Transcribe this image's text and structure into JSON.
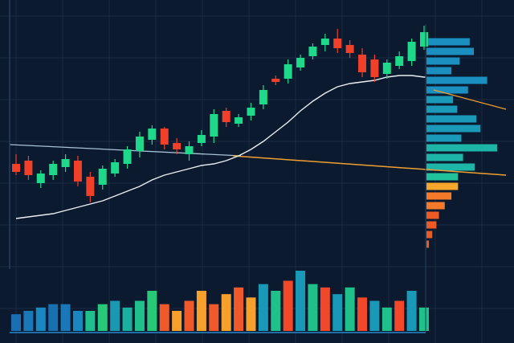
{
  "chart_data": {
    "type": "candlestick",
    "title": "",
    "xlabel": "",
    "ylabel": "",
    "grid": true,
    "price_range": [
      0,
      100
    ],
    "colors": {
      "background": "#0b1a2e",
      "grid": "#1a2c44",
      "bullish": "#1fd98a",
      "bearish": "#f0402a",
      "moving_average": "#e8eef4",
      "trend_line": "#f0a030",
      "axis": "#24405e"
    },
    "candles": [
      {
        "o": 58,
        "h": 64,
        "l": 51,
        "c": 53
      },
      {
        "o": 60,
        "h": 63,
        "l": 48,
        "c": 51
      },
      {
        "o": 46,
        "h": 54,
        "l": 43,
        "c": 52
      },
      {
        "o": 51,
        "h": 60,
        "l": 48,
        "c": 58
      },
      {
        "o": 56,
        "h": 64,
        "l": 53,
        "c": 61
      },
      {
        "o": 60,
        "h": 63,
        "l": 44,
        "c": 47
      },
      {
        "o": 50,
        "h": 53,
        "l": 34,
        "c": 38
      },
      {
        "o": 45,
        "h": 57,
        "l": 42,
        "c": 55
      },
      {
        "o": 52,
        "h": 61,
        "l": 50,
        "c": 59
      },
      {
        "o": 58,
        "h": 69,
        "l": 55,
        "c": 67
      },
      {
        "o": 66,
        "h": 78,
        "l": 62,
        "c": 75
      },
      {
        "o": 73,
        "h": 82,
        "l": 70,
        "c": 80
      },
      {
        "o": 80,
        "h": 81,
        "l": 67,
        "c": 70
      },
      {
        "o": 71,
        "h": 74,
        "l": 64,
        "c": 67
      },
      {
        "o": 64,
        "h": 72,
        "l": 60,
        "c": 69
      },
      {
        "o": 71,
        "h": 79,
        "l": 69,
        "c": 76
      },
      {
        "o": 75,
        "h": 92,
        "l": 71,
        "c": 89
      },
      {
        "o": 91,
        "h": 93,
        "l": 81,
        "c": 84
      },
      {
        "o": 83,
        "h": 89,
        "l": 81,
        "c": 87
      },
      {
        "o": 88,
        "h": 96,
        "l": 85,
        "c": 93
      },
      {
        "o": 95,
        "h": 107,
        "l": 92,
        "c": 104
      },
      {
        "o": 111,
        "h": 113,
        "l": 107,
        "c": 109
      },
      {
        "o": 111,
        "h": 123,
        "l": 108,
        "c": 120
      },
      {
        "o": 118,
        "h": 126,
        "l": 116,
        "c": 124
      },
      {
        "o": 125,
        "h": 133,
        "l": 123,
        "c": 131
      },
      {
        "o": 132,
        "h": 139,
        "l": 128,
        "c": 136
      },
      {
        "o": 136,
        "h": 142,
        "l": 127,
        "c": 130
      },
      {
        "o": 132,
        "h": 135,
        "l": 124,
        "c": 127
      },
      {
        "o": 126,
        "h": 130,
        "l": 112,
        "c": 115
      },
      {
        "o": 123,
        "h": 126,
        "l": 109,
        "c": 112
      },
      {
        "o": 114,
        "h": 123,
        "l": 111,
        "c": 121
      },
      {
        "o": 119,
        "h": 128,
        "l": 117,
        "c": 125
      },
      {
        "o": 122,
        "h": 136,
        "l": 119,
        "c": 134
      },
      {
        "o": 131,
        "h": 144,
        "l": 129,
        "c": 140
      }
    ],
    "moving_average": [
      24,
      25,
      26,
      27,
      29,
      31,
      33,
      35,
      38,
      41,
      44,
      48,
      51,
      53,
      55,
      57,
      58,
      60,
      63,
      67,
      72,
      78,
      84,
      91,
      97,
      102,
      106,
      108,
      109,
      110,
      112,
      113,
      113,
      112
    ],
    "flat_line": {
      "start": 70,
      "end": 63
    },
    "trend_line": {
      "start": 63,
      "end": 51
    },
    "volume": [
      5,
      6,
      7,
      8,
      8,
      6,
      6,
      8,
      9,
      7,
      9,
      12,
      8,
      6,
      9,
      12,
      8,
      11,
      13,
      10,
      14,
      12,
      15,
      18,
      14,
      13,
      11,
      13,
      10,
      9,
      7,
      9,
      12,
      7
    ],
    "volume_profile": [
      {
        "price": 134,
        "value": 52
      },
      {
        "price": 128,
        "value": 57
      },
      {
        "price": 122,
        "value": 40
      },
      {
        "price": 116,
        "value": 30
      },
      {
        "price": 110,
        "value": 73
      },
      {
        "price": 104,
        "value": 50
      },
      {
        "price": 98,
        "value": 32
      },
      {
        "price": 92,
        "value": 37
      },
      {
        "price": 86,
        "value": 60
      },
      {
        "price": 80,
        "value": 65
      },
      {
        "price": 74,
        "value": 42
      },
      {
        "price": 68,
        "value": 85
      },
      {
        "price": 62,
        "value": 44
      },
      {
        "price": 56,
        "value": 58
      },
      {
        "price": 50,
        "value": 38
      },
      {
        "price": 44,
        "value": 38
      },
      {
        "price": 38,
        "value": 30
      },
      {
        "price": 32,
        "value": 22
      },
      {
        "price": 26,
        "value": 15
      },
      {
        "price": 20,
        "value": 12
      },
      {
        "price": 14,
        "value": 7
      },
      {
        "price": 8,
        "value": 3
      }
    ]
  }
}
